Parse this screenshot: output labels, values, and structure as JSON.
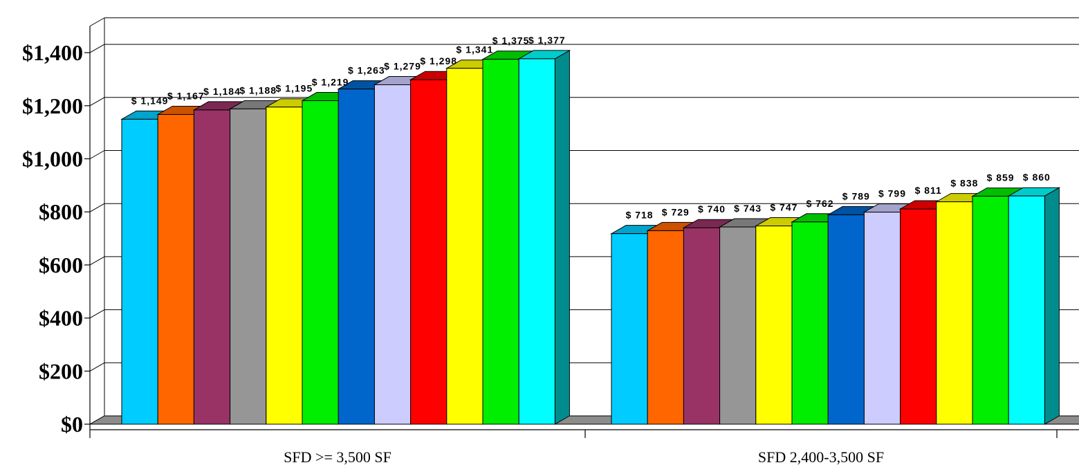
{
  "chart_data": {
    "type": "bar",
    "title": "",
    "xlabel": "",
    "ylabel": "",
    "ylim": [
      0,
      1500
    ],
    "yticks": [
      0,
      200,
      400,
      600,
      800,
      1000,
      1200,
      1400
    ],
    "ytick_labels": [
      "$0",
      "$200",
      "$400",
      "$600",
      "$800",
      "$1,000",
      "$1,200",
      "$1,400"
    ],
    "grid": true,
    "three_d": true,
    "categories": [
      "SFD >= 3,500 SF",
      "SFD 2,400-3,500 SF"
    ],
    "series": [
      {
        "color": "#00ccff",
        "values": [
          1149,
          718
        ],
        "labels": [
          "$ 1,149",
          "$ 718"
        ]
      },
      {
        "color": "#ff6600",
        "values": [
          1167,
          729
        ],
        "labels": [
          "$ 1,167",
          "$ 729"
        ]
      },
      {
        "color": "#993366",
        "values": [
          1184,
          740
        ],
        "labels": [
          "$ 1,184",
          "$ 740"
        ]
      },
      {
        "color": "#969696",
        "values": [
          1188,
          743
        ],
        "labels": [
          "$ 1,188",
          "$ 743"
        ]
      },
      {
        "color": "#ffff00",
        "values": [
          1195,
          747
        ],
        "labels": [
          "$ 1,195",
          "$ 747"
        ]
      },
      {
        "color": "#00ee00",
        "values": [
          1219,
          762
        ],
        "labels": [
          "$ 1,219",
          "$ 762"
        ]
      },
      {
        "color": "#0066cc",
        "values": [
          1263,
          789
        ],
        "labels": [
          "$ 1,263",
          "$ 789"
        ]
      },
      {
        "color": "#ccccff",
        "values": [
          1279,
          799
        ],
        "labels": [
          "$ 1,279",
          "$ 799"
        ]
      },
      {
        "color": "#ff0000",
        "values": [
          1298,
          811
        ],
        "labels": [
          "$ 1,298",
          "$ 811"
        ]
      },
      {
        "color": "#ffff00",
        "values": [
          1341,
          838
        ],
        "labels": [
          "$ 1,341",
          "$ 838"
        ]
      },
      {
        "color": "#00ee00",
        "values": [
          1375,
          859
        ],
        "labels": [
          "$ 1,375",
          "$ 859"
        ]
      },
      {
        "color": "#00ffff",
        "values": [
          1377,
          860
        ],
        "labels": [
          "$ 1,377",
          "$ 860"
        ]
      }
    ]
  }
}
